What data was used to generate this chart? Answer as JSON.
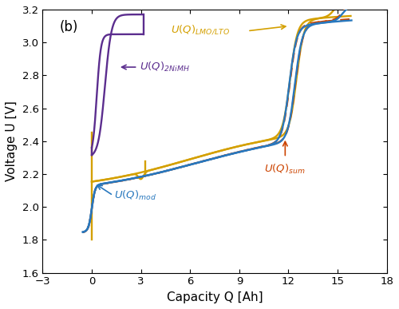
{
  "title": "(b)",
  "xlabel": "Capacity Q [Ah]",
  "ylabel": "Voltage U [V]",
  "xlim": [
    -3,
    18
  ],
  "ylim": [
    1.6,
    3.2
  ],
  "xticks": [
    -3,
    0,
    3,
    6,
    9,
    12,
    15,
    18
  ],
  "yticks": [
    1.6,
    1.8,
    2.0,
    2.2,
    2.4,
    2.6,
    2.8,
    3.0,
    3.2
  ],
  "color_nimh": "#5B2D8E",
  "color_lmo": "#D4A000",
  "color_mod": "#2878BE",
  "color_sum": "#CC4400",
  "background": "#FFFFFF",
  "annotation_fontsize": 9.5
}
